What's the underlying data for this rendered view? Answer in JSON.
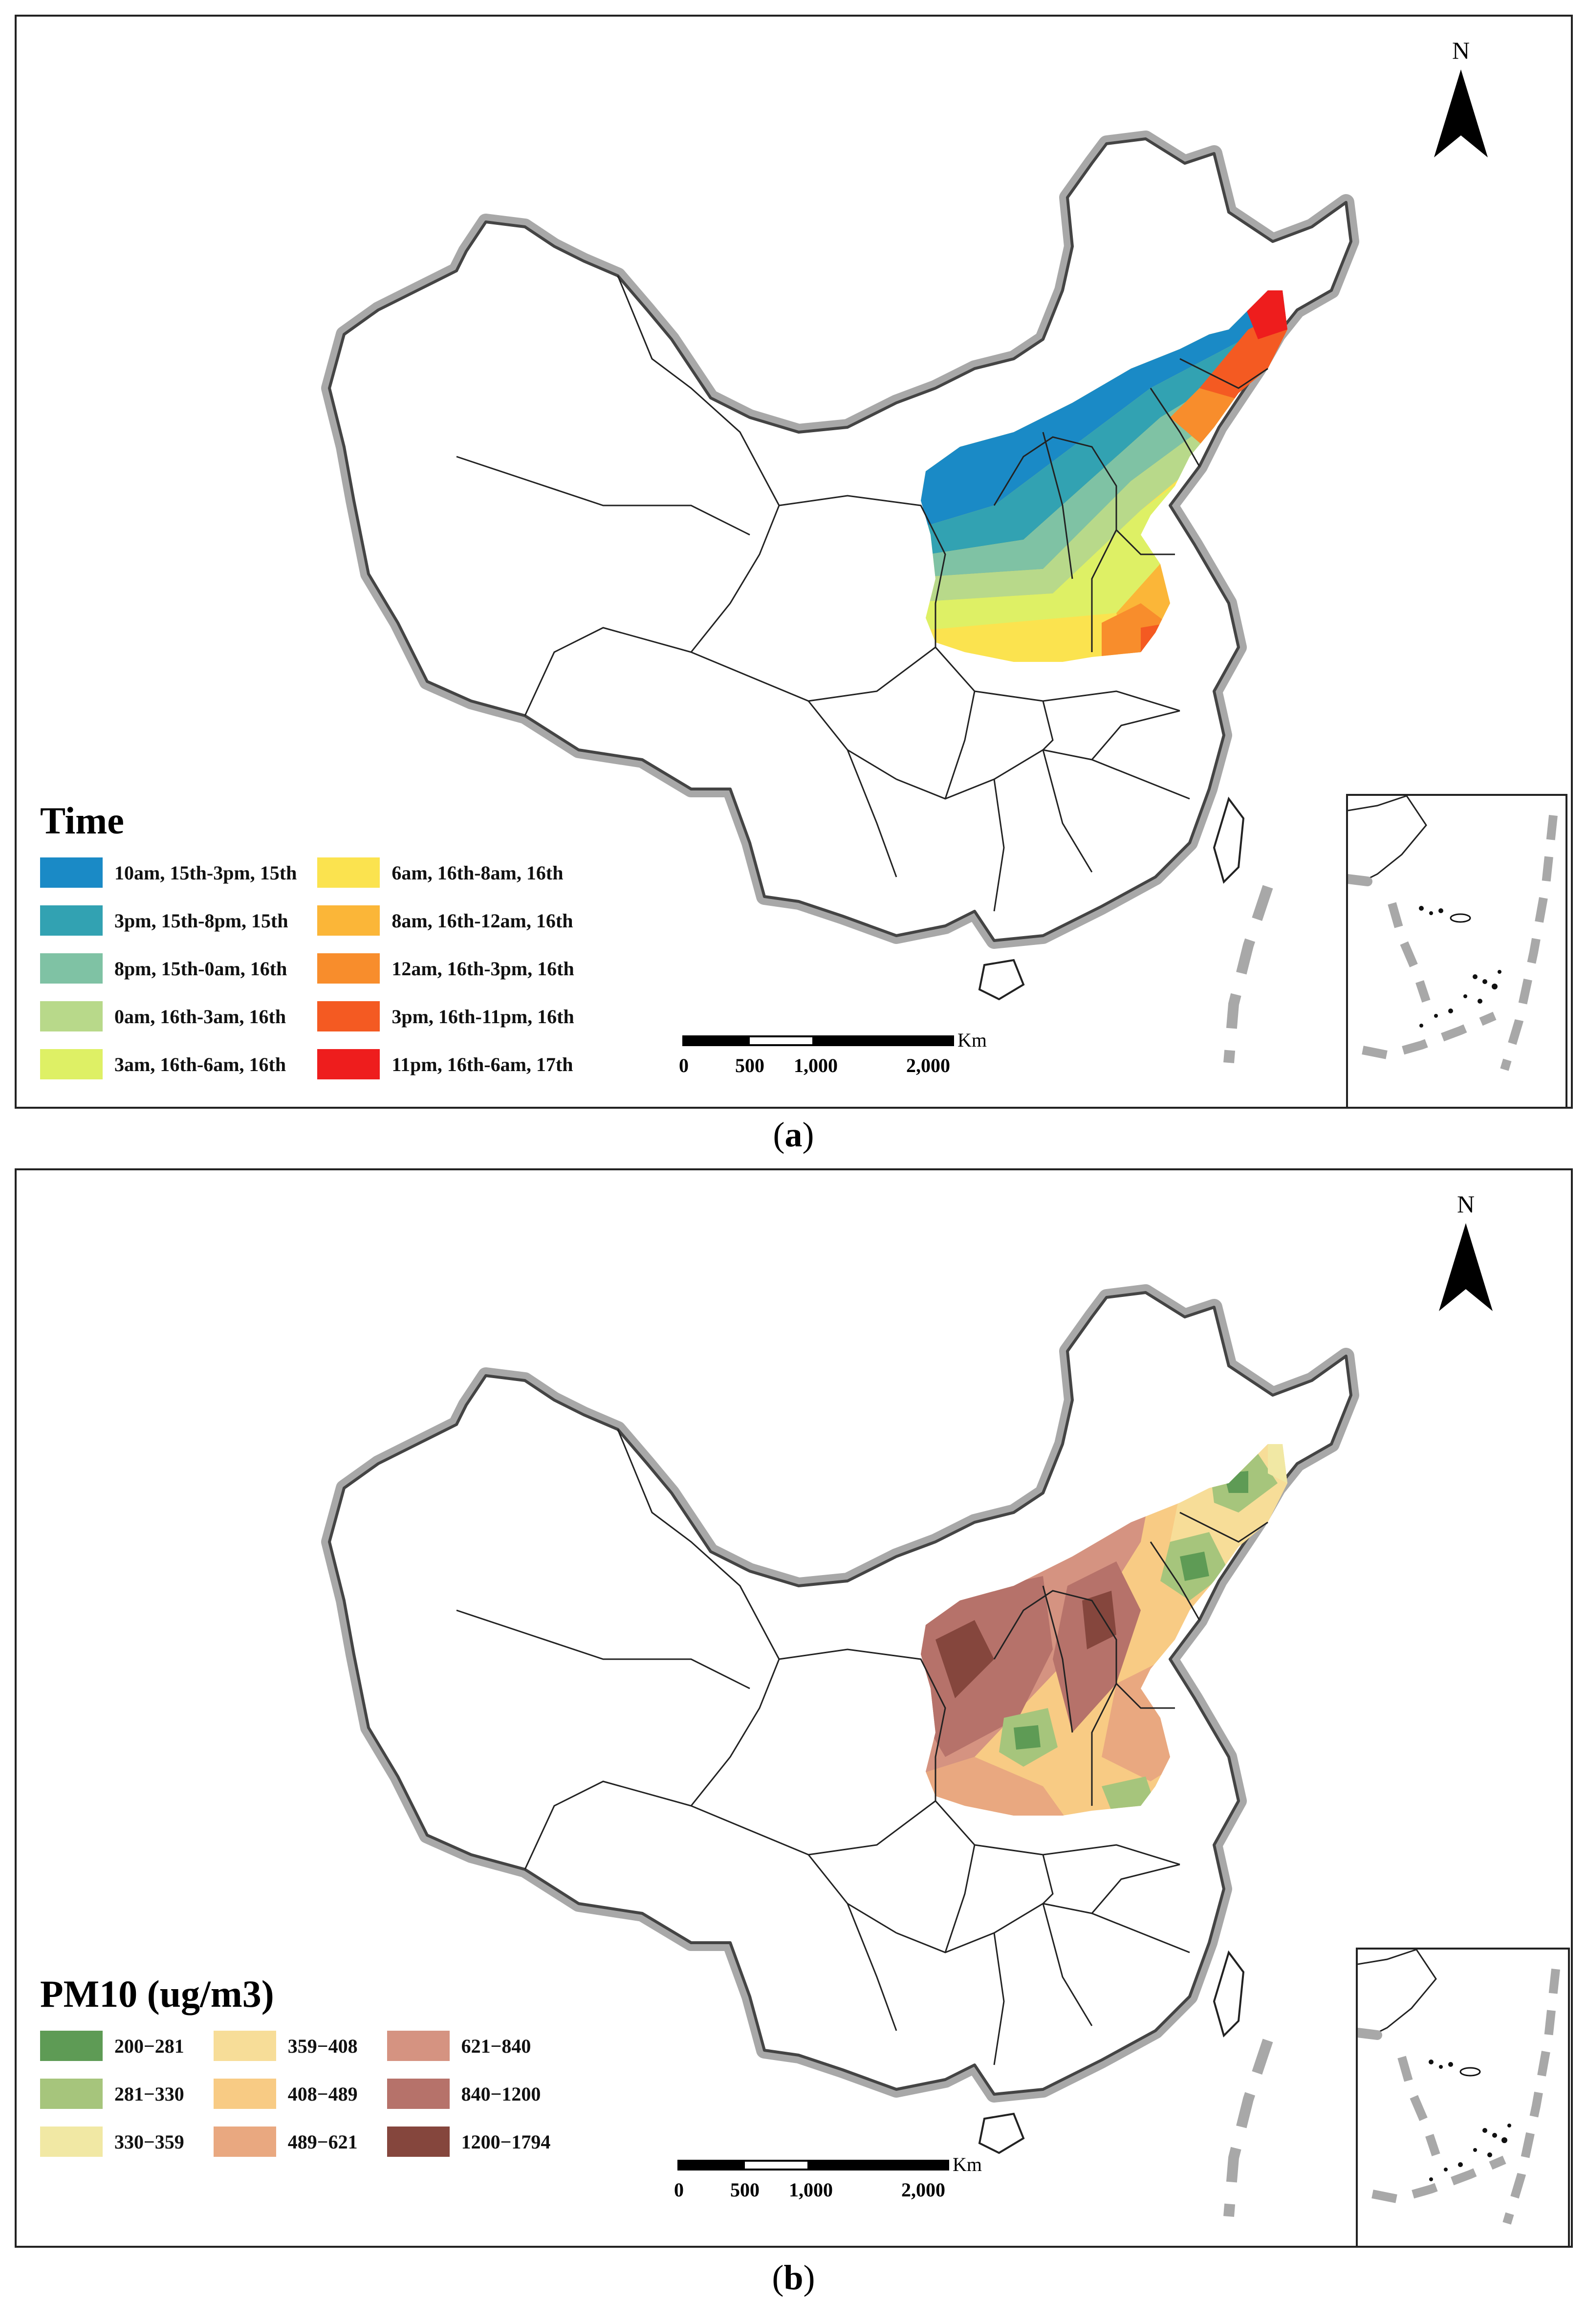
{
  "panel_a": {
    "caption_label": "a",
    "legend_title": "Time",
    "legend_items": [
      {
        "label": "10am, 15th-3pm, 15th",
        "color": "#1a8ac6"
      },
      {
        "label": "3pm, 15th-8pm, 15th",
        "color": "#32a2b2"
      },
      {
        "label": "8pm, 15th-0am, 16th",
        "color": "#7fc2a4"
      },
      {
        "label": "0am, 16th-3am, 16th",
        "color": "#b8d98a"
      },
      {
        "label": "3am, 16th-6am, 16th",
        "color": "#def065"
      },
      {
        "label": "6am, 16th-8am, 16th",
        "color": "#fbe34f"
      },
      {
        "label": "8am, 16th-12am, 16th",
        "color": "#fbb638"
      },
      {
        "label": "12am, 16th-3pm, 16th",
        "color": "#f88d2c"
      },
      {
        "label": "3pm, 16th-11pm, 16th",
        "color": "#f45a22"
      },
      {
        "label": "11pm, 16th-6am, 17th",
        "color": "#ee1d1d"
      }
    ],
    "north_label": "N",
    "scale": {
      "unit": "Km",
      "ticks": [
        "0",
        "500",
        "1,000",
        "2,000"
      ]
    }
  },
  "panel_b": {
    "caption_label": "b",
    "legend_title": "PM10 (ug/m3)",
    "legend_items": [
      {
        "label": "200−281",
        "color": "#5e9b55"
      },
      {
        "label": "281−330",
        "color": "#a6c57c"
      },
      {
        "label": "330−359",
        "color": "#f1e8a4"
      },
      {
        "label": "359−408",
        "color": "#f7dd98"
      },
      {
        "label": "408−489",
        "color": "#f8cb84"
      },
      {
        "label": "489−621",
        "color": "#e9a880"
      },
      {
        "label": "621−840",
        "color": "#d59381"
      },
      {
        "label": "840−1200",
        "color": "#b6726a"
      },
      {
        "label": "1200−1794",
        "color": "#85463d"
      }
    ],
    "north_label": "N",
    "scale": {
      "unit": "Km",
      "ticks": [
        "0",
        "500",
        "1,000",
        "2,000"
      ]
    }
  }
}
